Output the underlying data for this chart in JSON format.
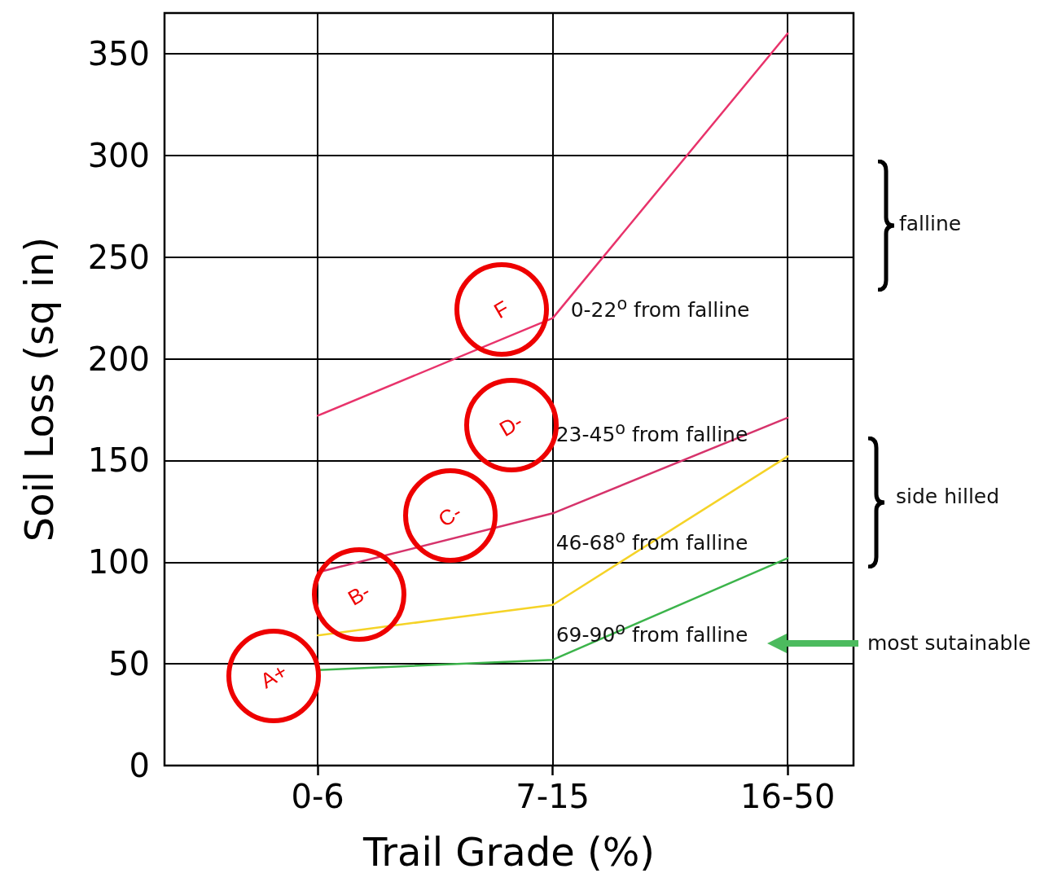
{
  "chart_data": {
    "type": "line",
    "xlabel": "Trail Grade (%)",
    "ylabel": "Soil Loss (sq in)",
    "categories": [
      "0-6",
      "7-15",
      "16-50"
    ],
    "series": [
      {
        "name": "0-22$^{o}$ from falline",
        "color": "#e8336b",
        "values": [
          172,
          220,
          360
        ]
      },
      {
        "name": "23-45$^{o}$ from falline",
        "color": "#d6336b",
        "values": [
          95,
          124,
          171
        ]
      },
      {
        "name": "46-68$^{o}$ from falline",
        "color": "#f5d327",
        "values": [
          64,
          79,
          152
        ]
      },
      {
        "name": "69-90$^{o}$ from falline",
        "color": "#3cb44b",
        "values": [
          47,
          52,
          102
        ]
      }
    ],
    "ylim": [
      0,
      370
    ],
    "yticks": [
      0,
      50,
      100,
      150,
      200,
      250,
      300,
      350
    ],
    "grid": true,
    "annotations": [
      "A+",
      "B-",
      "C-",
      "D-",
      "F",
      "falline",
      "side hilled",
      "most sutainable"
    ]
  }
}
